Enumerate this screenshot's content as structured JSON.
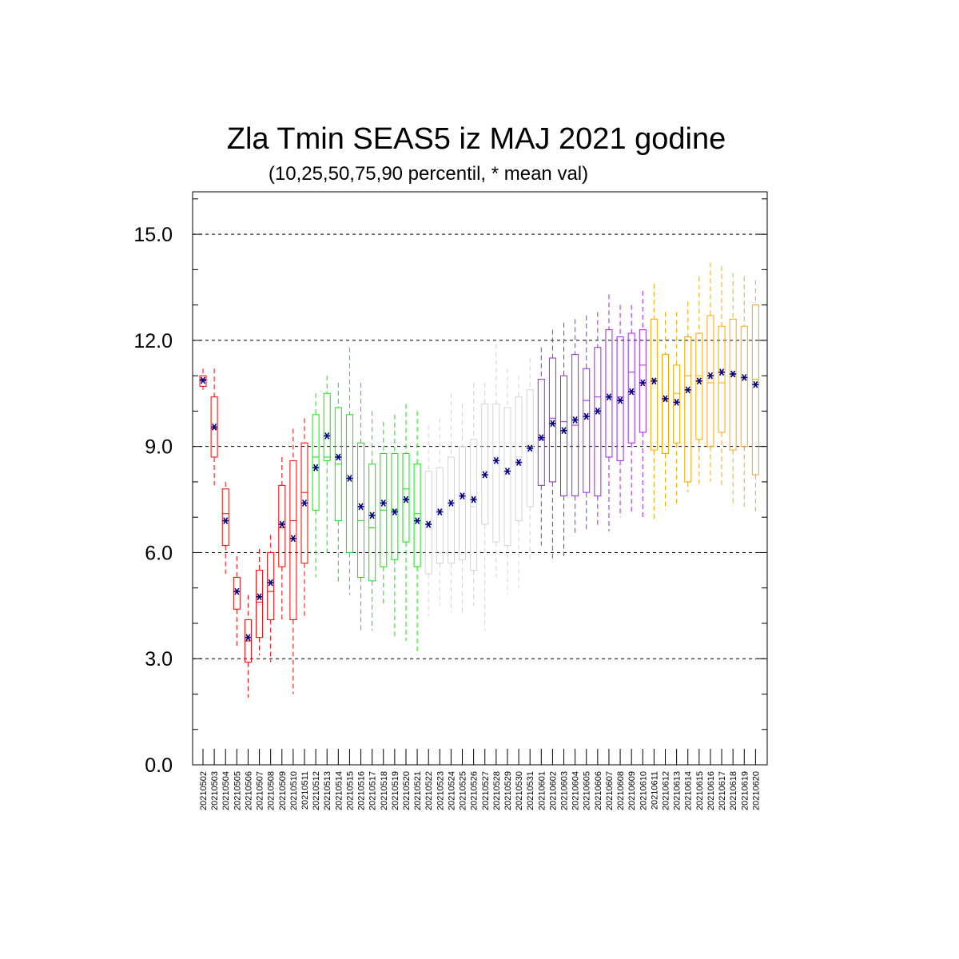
{
  "chart_data": {
    "type": "box",
    "title": "Zla Tmin SEAS5 iz MAJ 2021 godine",
    "subtitle": "(10,25,50,75,90 percentil, * mean val)",
    "xlabel": "",
    "ylabel": "",
    "ylim": [
      0,
      16.2
    ],
    "yticks": [
      0,
      3,
      6,
      9,
      12,
      15
    ],
    "ytick_labels": [
      "0.0",
      "3.0",
      "6.0",
      "9.0",
      "12.0",
      "15.0"
    ],
    "grid": "horizontal dashed at major ticks",
    "colors": {
      "may_early": "#ff0000",
      "may_mid": "#00ee00",
      "may_late": "#d3d3d3",
      "june_early": "#a020f0",
      "june_late": "#ffa500",
      "mean_marker": "#000080"
    },
    "categories": [
      "20210502",
      "20210503",
      "20210504",
      "20210505",
      "20210506",
      "20210507",
      "20210508",
      "20210509",
      "20210510",
      "20210511",
      "20210512",
      "20210513",
      "20210514",
      "20210515",
      "20210516",
      "20210517",
      "20210518",
      "20210519",
      "20210520",
      "20210521",
      "20210522",
      "20210523",
      "20210524",
      "20210525",
      "20210526",
      "20210527",
      "20210528",
      "20210529",
      "20210530",
      "20210531",
      "20210601",
      "20210602",
      "20210603",
      "20210604",
      "20210605",
      "20210606",
      "20210607",
      "20210608",
      "20210609",
      "20210610",
      "20210611",
      "20210612",
      "20210613",
      "20210614",
      "20210615",
      "20210616",
      "20210617",
      "20210618",
      "20210619",
      "20210620"
    ],
    "series_colors": [
      "may_early",
      "may_early",
      "may_early",
      "may_early",
      "may_early",
      "may_early",
      "may_early",
      "may_early",
      "may_early",
      "may_early",
      "may_mid",
      "may_mid",
      "may_mid",
      "may_mid",
      "may_mid",
      "may_mid",
      "may_mid",
      "may_mid",
      "may_mid",
      "may_mid",
      "may_late",
      "may_late",
      "may_late",
      "may_late",
      "may_late",
      "may_late",
      "may_late",
      "may_late",
      "may_late",
      "may_late",
      "june_early",
      "june_early",
      "june_early",
      "june_early",
      "june_early",
      "june_early",
      "june_early",
      "june_early",
      "june_early",
      "june_early",
      "june_late",
      "june_late",
      "june_late",
      "june_late",
      "june_late",
      "june_late",
      "june_late",
      "june_late",
      "june_late",
      "june_late"
    ],
    "p10": [
      10.6,
      7.9,
      5.4,
      3.3,
      1.9,
      3.1,
      2.9,
      4.1,
      2.0,
      4.2,
      5.3,
      5.9,
      5.1,
      4.8,
      3.8,
      3.8,
      4.5,
      3.6,
      3.5,
      3.1,
      4.2,
      4.5,
      4.3,
      4.3,
      4.5,
      3.8,
      5.3,
      4.8,
      5.0,
      5.8,
      6.2,
      5.8,
      5.9,
      6.5,
      6.6,
      6.7,
      6.6,
      7.0,
      7.1,
      7.0,
      6.9,
      7.2,
      7.3,
      7.7,
      7.9,
      8.0,
      7.9,
      7.3,
      7.3,
      7.1
    ],
    "p25": [
      10.7,
      8.7,
      6.2,
      4.4,
      2.9,
      3.6,
      4.1,
      5.6,
      4.1,
      5.7,
      7.2,
      8.6,
      6.9,
      6.0,
      5.3,
      5.2,
      5.6,
      5.8,
      6.3,
      5.6,
      5.4,
      5.7,
      5.7,
      5.8,
      5.5,
      6.8,
      6.3,
      6.2,
      6.9,
      7.3,
      7.9,
      8.0,
      7.6,
      7.6,
      7.7,
      7.6,
      8.7,
      8.6,
      9.1,
      9.4,
      8.9,
      8.8,
      9.1,
      8.0,
      9.2,
      9.0,
      9.4,
      8.9,
      9.0,
      8.2
    ],
    "p50": [
      10.9,
      9.5,
      7.1,
      4.9,
      3.5,
      4.6,
      4.9,
      6.7,
      6.9,
      7.7,
      8.7,
      8.7,
      8.5,
      6.0,
      6.9,
      6.7,
      7.2,
      7.2,
      7.8,
      7.1,
      6.7,
      7.2,
      7.4,
      7.6,
      7.3,
      8.3,
      8.7,
      8.2,
      8.7,
      8.9,
      9.2,
      9.8,
      9.7,
      9.6,
      10.3,
      10.4,
      10.4,
      10.4,
      11.1,
      11.3,
      10.9,
      10.3,
      10.5,
      11.0,
      11.0,
      10.8,
      10.8,
      11.0,
      10.9,
      10.9
    ],
    "p75": [
      11.0,
      10.4,
      7.8,
      5.3,
      4.1,
      5.5,
      6.0,
      7.9,
      8.6,
      9.1,
      9.9,
      10.5,
      10.1,
      9.9,
      9.1,
      8.5,
      8.8,
      8.8,
      8.8,
      8.5,
      8.3,
      8.4,
      8.7,
      9.0,
      9.2,
      10.2,
      10.2,
      10.1,
      10.4,
      10.6,
      10.9,
      11.5,
      11.0,
      11.6,
      11.2,
      11.8,
      12.3,
      12.1,
      12.2,
      12.3,
      12.6,
      11.6,
      11.3,
      12.1,
      12.2,
      12.7,
      12.4,
      12.6,
      12.4,
      13.0
    ],
    "p90": [
      11.2,
      11.2,
      8.0,
      5.9,
      4.8,
      6.1,
      6.5,
      8.7,
      9.5,
      9.8,
      10.5,
      11.0,
      10.8,
      11.8,
      10.8,
      10.0,
      9.7,
      9.9,
      10.2,
      10.0,
      9.6,
      9.8,
      10.5,
      10.2,
      10.8,
      10.8,
      11.9,
      11.2,
      11.0,
      11.5,
      11.8,
      12.3,
      12.5,
      12.6,
      12.7,
      12.8,
      13.3,
      13.0,
      13.0,
      13.4,
      13.6,
      12.8,
      12.8,
      13.1,
      13.8,
      14.2,
      14.1,
      13.9,
      13.8,
      13.7
    ],
    "mean": [
      10.87,
      9.55,
      6.9,
      4.9,
      3.6,
      4.75,
      5.15,
      6.8,
      6.4,
      7.4,
      8.4,
      9.3,
      8.7,
      8.1,
      7.3,
      7.05,
      7.4,
      7.15,
      7.5,
      6.9,
      6.8,
      7.15,
      7.4,
      7.6,
      7.5,
      8.2,
      8.6,
      8.3,
      8.55,
      8.95,
      9.25,
      9.65,
      9.45,
      9.75,
      9.85,
      10.0,
      10.4,
      10.3,
      10.55,
      10.8,
      10.85,
      10.35,
      10.25,
      10.6,
      10.85,
      11.0,
      11.1,
      11.05,
      10.95,
      10.75
    ]
  }
}
